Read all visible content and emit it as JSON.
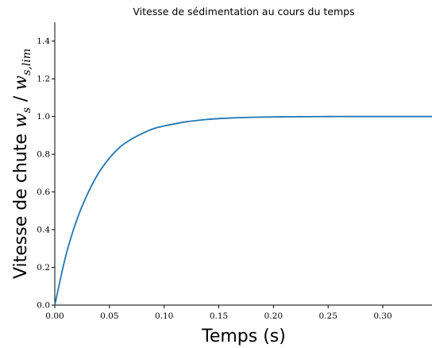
{
  "chart_data": {
    "type": "line",
    "title": "Vitesse de sédimentation au cours du temps",
    "xlabel": "Temps (s)",
    "ylabel": {
      "text": "Vitesse de chute ",
      "math_main": "w",
      "math_main_sub": "s",
      "separator": " / ",
      "math_den": "w",
      "math_den_sub": "s,lim"
    },
    "xlim": [
      0.0,
      0.345
    ],
    "ylim": [
      0.0,
      1.5
    ],
    "xticks": [
      0.0,
      0.05,
      0.1,
      0.15,
      0.2,
      0.25,
      0.3
    ],
    "xtick_labels": [
      "0.00",
      "0.05",
      "0.10",
      "0.15",
      "0.20",
      "0.25",
      "0.30"
    ],
    "yticks": [
      0.0,
      0.2,
      0.4,
      0.6,
      0.8,
      1.0,
      1.2,
      1.4
    ],
    "ytick_labels": [
      "0.0",
      "0.2",
      "0.4",
      "0.6",
      "0.8",
      "1.0",
      "1.2",
      "1.4"
    ],
    "grid": false,
    "series": [
      {
        "color": "#1f77b4",
        "x": [
          0.0,
          0.01,
          0.02,
          0.03,
          0.04,
          0.05,
          0.06,
          0.07,
          0.08,
          0.09,
          0.1,
          0.12,
          0.14,
          0.16,
          0.18,
          0.2,
          0.22,
          0.25,
          0.28,
          0.31,
          0.345
        ],
        "y": [
          0.0,
          0.26,
          0.45,
          0.59,
          0.7,
          0.78,
          0.84,
          0.88,
          0.91,
          0.935,
          0.95,
          0.972,
          0.985,
          0.992,
          0.996,
          0.998,
          0.999,
          1.0,
          1.0,
          1.0,
          1.0
        ]
      }
    ]
  }
}
